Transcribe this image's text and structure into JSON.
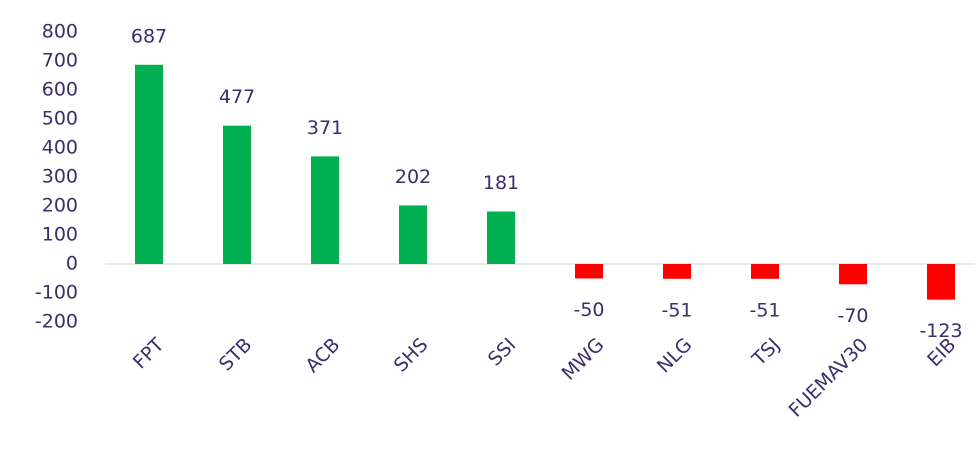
{
  "chart_data": {
    "type": "bar",
    "categories": [
      "FPT",
      "STB",
      "ACB",
      "SHS",
      "SSI",
      "MWG",
      "NLG",
      "TSJ",
      "FUEMAV30",
      "EIB"
    ],
    "values": [
      687,
      477,
      371,
      202,
      181,
      -50,
      -51,
      -51,
      -70,
      -123
    ],
    "positive_color": "#00b050",
    "negative_color": "#ff0000",
    "ylim": [
      -200,
      800
    ],
    "yticks": [
      -200,
      -100,
      0,
      100,
      200,
      300,
      400,
      500,
      600,
      700,
      800
    ],
    "grid": false
  }
}
